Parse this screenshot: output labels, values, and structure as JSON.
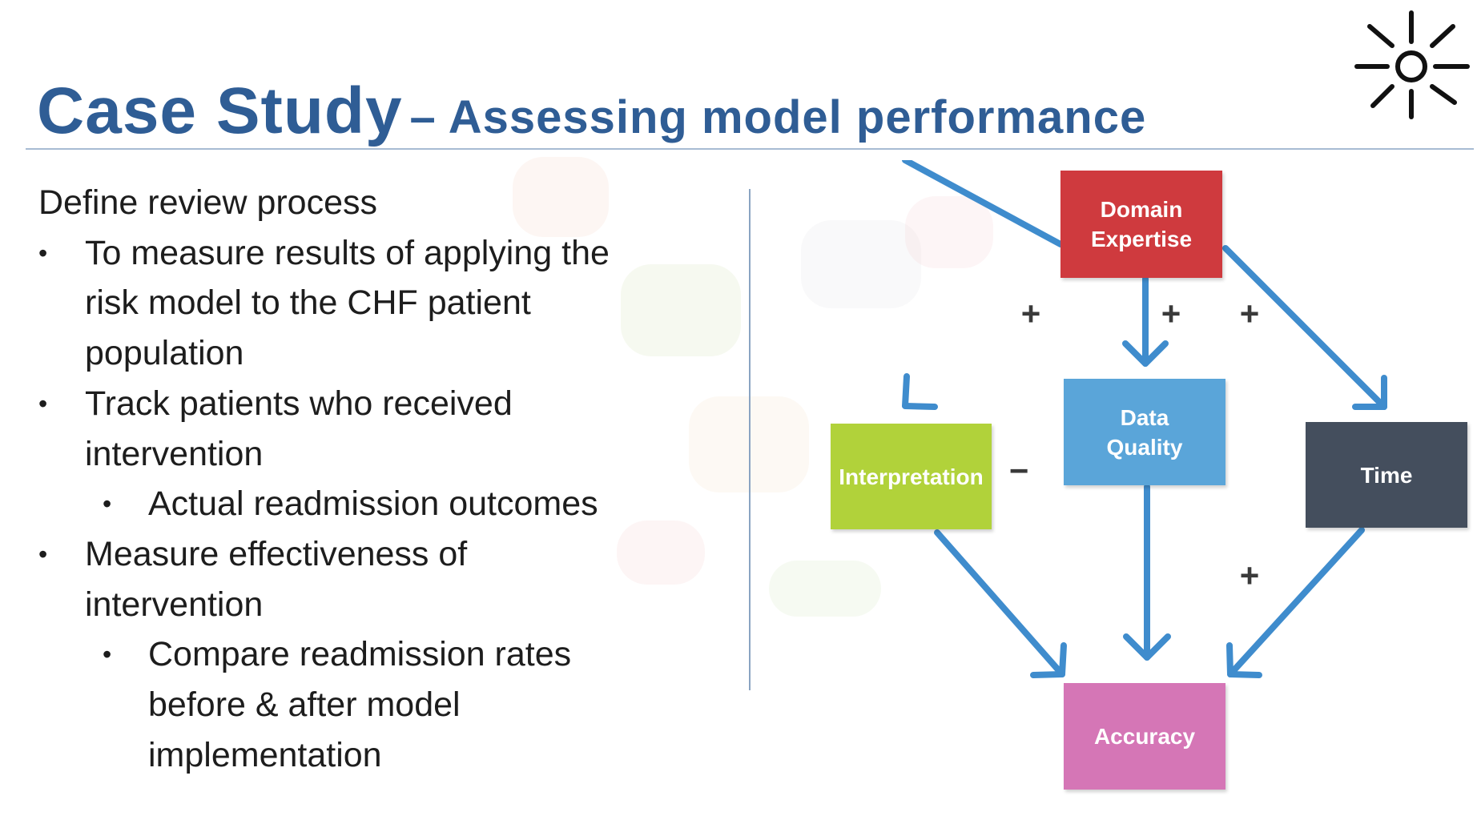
{
  "title": {
    "main": "Case Study",
    "sub": "– Assessing model performance"
  },
  "content": {
    "lines": [
      {
        "text": "Define review process",
        "level": 0
      },
      {
        "text": "To measure results of applying the",
        "level": 1,
        "bullet": "•"
      },
      {
        "text": "risk model to the CHF patient",
        "level": 1
      },
      {
        "text": "population",
        "level": 1
      },
      {
        "text": "Track patients who received",
        "level": 1,
        "bullet": "•"
      },
      {
        "text": "intervention",
        "level": 1
      },
      {
        "text": "Actual readmission outcomes",
        "level": 2,
        "bullet": "•"
      },
      {
        "text": "Measure effectiveness of",
        "level": 1,
        "bullet": "•"
      },
      {
        "text": "intervention",
        "level": 1
      },
      {
        "text": "Compare readmission rates",
        "level": 2,
        "bullet": "•"
      },
      {
        "text": "before & after model",
        "level": 2
      },
      {
        "text": "implementation",
        "level": 2
      }
    ]
  },
  "diagram": {
    "nodes": {
      "domain_expertise": {
        "line1": "Domain",
        "line2": "Expertise",
        "color": "#cf3a3e"
      },
      "interpretation": {
        "label": "Interpretation",
        "color": "#b1d23a"
      },
      "data_quality": {
        "line1": "Data",
        "line2": "Quality",
        "color": "#5aa5d9"
      },
      "time": {
        "label": "Time",
        "color": "#444e5d"
      },
      "accuracy": {
        "label": "Accuracy",
        "color": "#d576b6"
      }
    },
    "operators": {
      "expertise_to_interpretation": "+",
      "expertise_to_data_quality": "+",
      "expertise_to_time": "+",
      "interpretation_to_accuracy": "−",
      "time_to_accuracy": "+"
    },
    "arrow_color": "#3f8ccd"
  },
  "logo": {
    "icon": "sun-burst-icon"
  }
}
